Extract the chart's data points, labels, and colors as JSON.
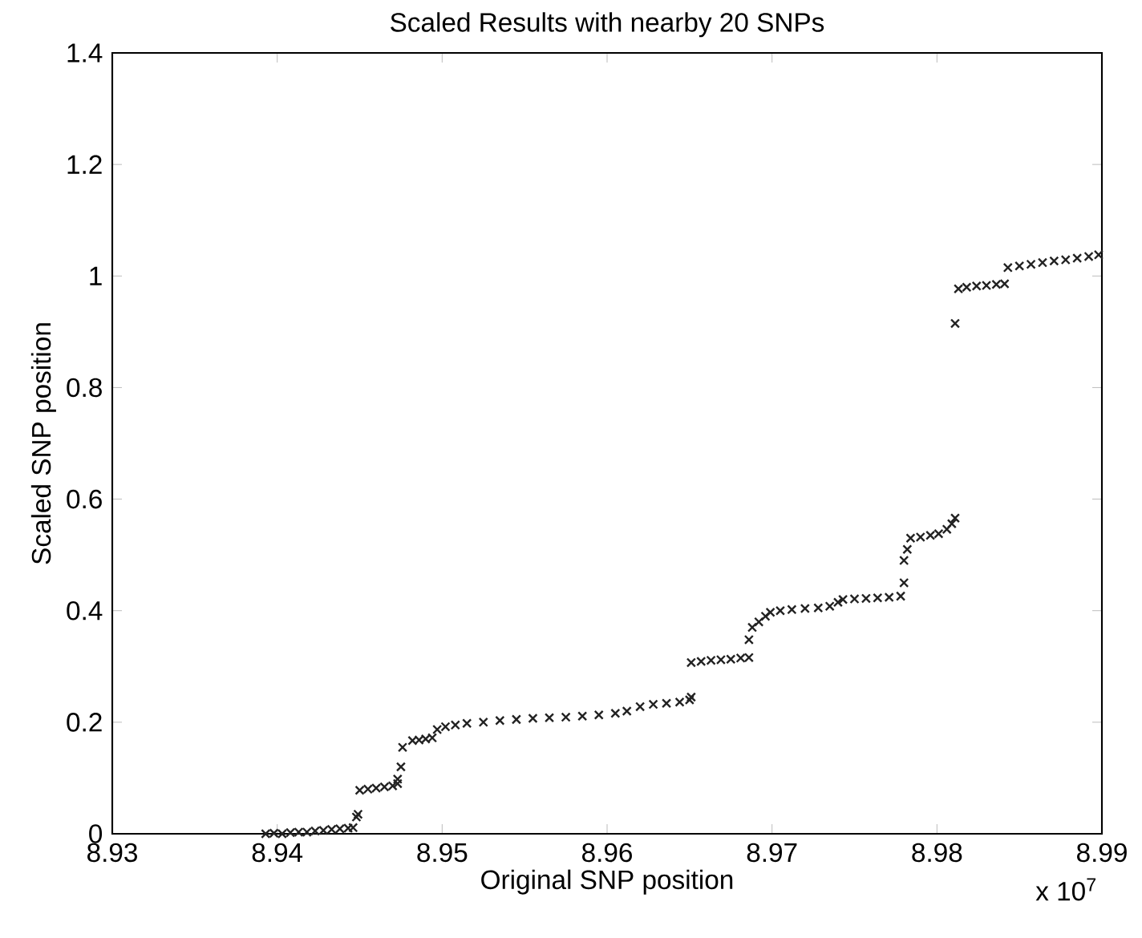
{
  "chart_data": {
    "type": "scatter",
    "title": "Scaled Results with nearby 20 SNPs",
    "xlabel": "Original SNP position",
    "ylabel": "Scaled SNP position",
    "annotations": [
      "x 10$^{7}$"
    ],
    "xlim": [
      8.93,
      8.99
    ],
    "xticks": [
      8.93,
      8.94,
      8.95,
      8.96,
      8.97,
      8.98,
      8.99
    ],
    "ylim": [
      0,
      1.4
    ],
    "yticks": [
      0,
      0.2,
      0.4,
      0.6,
      0.8,
      1,
      1.2,
      1.4
    ],
    "marker": "cross",
    "series": [
      {
        "color": "#222222",
        "x": [
          8.9393,
          8.9398,
          8.9403,
          8.9408,
          8.9413,
          8.9418,
          8.9423,
          8.9428,
          8.9433,
          8.9438,
          8.9443,
          8.9446,
          8.9448,
          8.9449,
          8.945,
          8.9455,
          8.946,
          8.9465,
          8.947,
          8.9473,
          8.9473,
          8.9475,
          8.9476,
          8.9482,
          8.9486,
          8.949,
          8.9494,
          8.9497,
          8.9502,
          8.9508,
          8.9515,
          8.9525,
          8.9535,
          8.9545,
          8.9555,
          8.9565,
          8.9575,
          8.9585,
          8.9595,
          8.9605,
          8.9612,
          8.962,
          8.9628,
          8.9636,
          8.9644,
          8.965,
          8.9651,
          8.9651,
          8.9657,
          8.9663,
          8.9669,
          8.9675,
          8.9681,
          8.9686,
          8.9686,
          8.9688,
          8.9692,
          8.9696,
          8.9699,
          8.9705,
          8.9712,
          8.972,
          8.9728,
          8.9735,
          8.974,
          8.9743,
          8.975,
          8.9757,
          8.9764,
          8.9771,
          8.9778,
          8.978,
          8.978,
          8.9782,
          8.9784,
          8.979,
          8.9796,
          8.9801,
          8.9806,
          8.9809,
          8.9811,
          8.9811,
          8.9813,
          8.9818,
          8.9824,
          8.983,
          8.9836,
          8.9841,
          8.9843,
          8.985,
          8.9857,
          8.9864,
          8.9871,
          8.9878,
          8.9885,
          8.9892,
          8.9898
        ],
        "values": [
          0.0,
          0.001,
          0.0,
          0.002,
          0.003,
          0.003,
          0.005,
          0.006,
          0.008,
          0.009,
          0.01,
          0.011,
          0.03,
          0.035,
          0.078,
          0.08,
          0.082,
          0.084,
          0.086,
          0.09,
          0.098,
          0.12,
          0.155,
          0.167,
          0.168,
          0.17,
          0.172,
          0.187,
          0.192,
          0.195,
          0.198,
          0.2,
          0.203,
          0.205,
          0.207,
          0.208,
          0.209,
          0.211,
          0.213,
          0.216,
          0.22,
          0.228,
          0.232,
          0.234,
          0.236,
          0.24,
          0.245,
          0.307,
          0.309,
          0.311,
          0.312,
          0.313,
          0.315,
          0.316,
          0.348,
          0.37,
          0.38,
          0.39,
          0.397,
          0.4,
          0.402,
          0.404,
          0.405,
          0.408,
          0.415,
          0.42,
          0.421,
          0.422,
          0.423,
          0.424,
          0.426,
          0.45,
          0.49,
          0.51,
          0.53,
          0.532,
          0.535,
          0.538,
          0.546,
          0.556,
          0.566,
          0.915,
          0.977,
          0.98,
          0.982,
          0.983,
          0.985,
          0.986,
          1.015,
          1.018,
          1.021,
          1.024,
          1.027,
          1.029,
          1.032,
          1.035,
          1.038
        ]
      }
    ]
  }
}
